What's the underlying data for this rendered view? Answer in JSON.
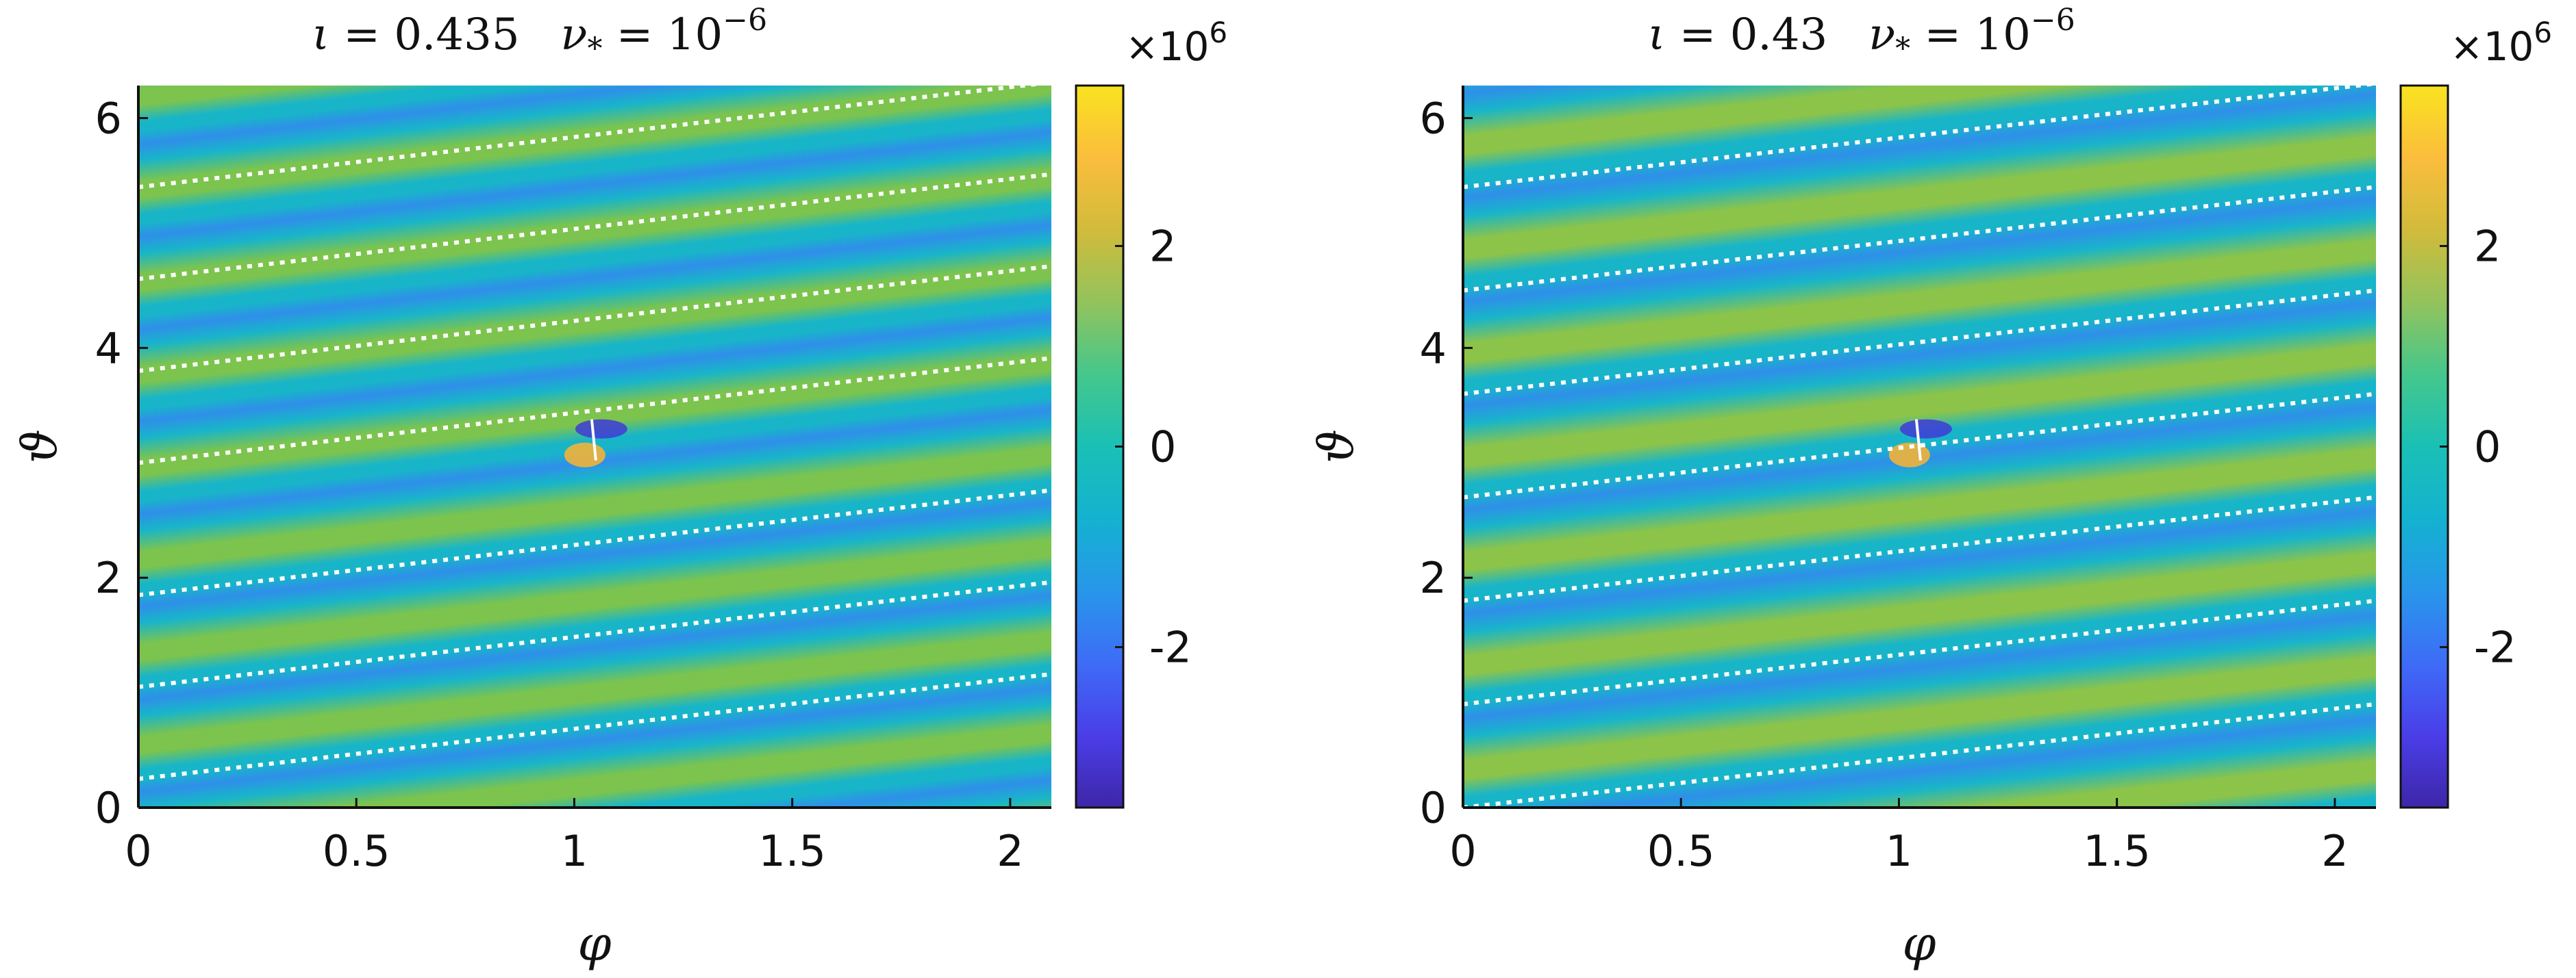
{
  "chart_data": [
    {
      "type": "heatmap",
      "title": {
        "iota_symbol": "ι",
        "equals": " = ",
        "iota_value": "0.435",
        "nu_symbol": "ν",
        "nu_sub": "*",
        "nu_equals": " = 10",
        "nu_exp": "−6"
      },
      "iota": 0.435,
      "nu_star": 1e-06,
      "xlabel": "φ",
      "ylabel": "ϑ",
      "xlim": [
        0,
        2.0944
      ],
      "ylim": [
        0,
        6.2832
      ],
      "xticks": [
        0,
        0.5,
        1,
        1.5,
        2
      ],
      "xtick_labels": [
        "0",
        "0.5",
        "1",
        "1.5",
        "2"
      ],
      "yticks": [
        0,
        2,
        4,
        6
      ],
      "ytick_labels": [
        "0",
        "2",
        "4",
        "6"
      ],
      "colorbar": {
        "clim": [
          -3.6,
          3.6
        ],
        "ticks": [
          -2,
          0,
          2
        ],
        "tick_labels": [
          "-2",
          "0",
          "2"
        ],
        "multiplier_base": "×10",
        "multiplier_exp": "6",
        "colormap": "parula"
      },
      "field_lines": {
        "style": "dotted",
        "color": "#ffffff",
        "intercepts": [
          0.25,
          1.05,
          1.85,
          3.0,
          3.8,
          4.6,
          5.4
        ]
      },
      "feature": {
        "location": [
          1.04,
          3.2
        ]
      }
    },
    {
      "type": "heatmap",
      "title": {
        "iota_symbol": "ι",
        "equals": " = ",
        "iota_value": "0.43",
        "nu_symbol": "ν",
        "nu_sub": "*",
        "nu_equals": " = 10",
        "nu_exp": "−6"
      },
      "iota": 0.43,
      "nu_star": 1e-06,
      "xlabel": "φ",
      "ylabel": "ϑ",
      "xlim": [
        0,
        2.0944
      ],
      "ylim": [
        0,
        6.2832
      ],
      "xticks": [
        0,
        0.5,
        1,
        1.5,
        2
      ],
      "xtick_labels": [
        "0",
        "0.5",
        "1",
        "1.5",
        "2"
      ],
      "yticks": [
        0,
        2,
        4,
        6
      ],
      "ytick_labels": [
        "0",
        "2",
        "4",
        "6"
      ],
      "colorbar": {
        "clim": [
          -3.6,
          3.6
        ],
        "ticks": [
          -2,
          0,
          2
        ],
        "tick_labels": [
          "-2",
          "0",
          "2"
        ],
        "multiplier_base": "×10",
        "multiplier_exp": "6",
        "colormap": "parula"
      },
      "field_lines": {
        "style": "dotted",
        "color": "#ffffff",
        "intercepts": [
          0.0,
          0.9,
          1.8,
          2.7,
          3.6,
          4.5,
          5.4
        ]
      },
      "feature": {
        "location": [
          1.04,
          3.2
        ]
      }
    }
  ],
  "colors": {
    "colormap_stops": [
      "#3e26a8",
      "#4a3ee8",
      "#3e6cf7",
      "#2896ea",
      "#14b2d0",
      "#1ac0b5",
      "#45c78c",
      "#93c35c",
      "#d1bb3b",
      "#fbbd3c",
      "#f9e320"
    ],
    "dark_band": "#2f8fe9",
    "mid_band": "#18b5c9",
    "light_band": "#7cc44e",
    "field_line": "#ffffff",
    "axis": "#111111"
  }
}
